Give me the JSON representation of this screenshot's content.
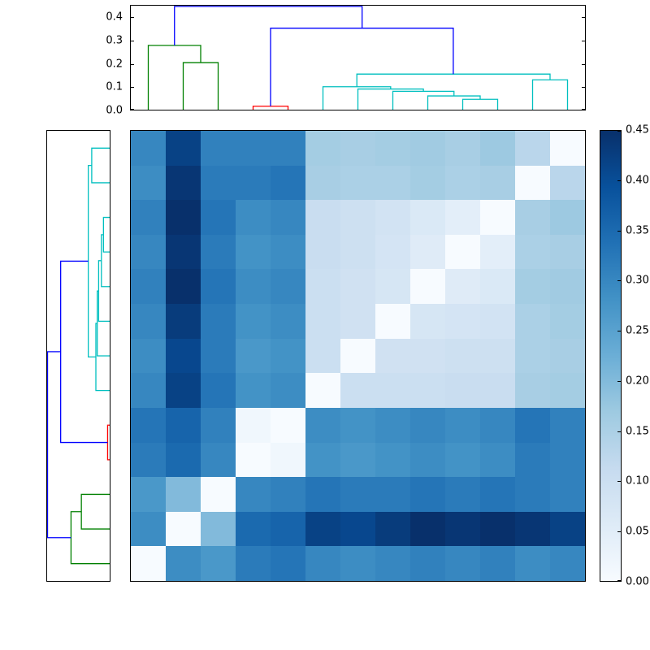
{
  "figure": {
    "background": "#ffffff",
    "description": "Clustered heatmap (distance matrix) with top and left dendrograms and a vertical colorbar"
  },
  "dendrogram_colors": {
    "blue": "#0000ff",
    "green": "#008000",
    "red": "#ff0000",
    "cyan": "#00bfbf"
  },
  "colormap": {
    "name": "Blues",
    "anchors": [
      [
        0.0,
        "#f7fbff"
      ],
      [
        0.125,
        "#deebf7"
      ],
      [
        0.25,
        "#c6dbef"
      ],
      [
        0.375,
        "#9ecae1"
      ],
      [
        0.5,
        "#6baed6"
      ],
      [
        0.625,
        "#4292c6"
      ],
      [
        0.75,
        "#2171b5"
      ],
      [
        0.875,
        "#08519c"
      ],
      [
        1.0,
        "#08306b"
      ]
    ]
  },
  "chart_data": {
    "type": "heatmap",
    "title": "",
    "n_rows": 13,
    "n_cols": 13,
    "vmin": 0.0,
    "vmax": 0.45,
    "grid": false,
    "matrix_rows_top_to_bottom": [
      [
        0.3,
        0.42,
        0.31,
        0.31,
        0.31,
        0.16,
        0.155,
        0.16,
        0.165,
        0.155,
        0.17,
        0.13,
        0.0
      ],
      [
        0.29,
        0.44,
        0.32,
        0.32,
        0.33,
        0.155,
        0.15,
        0.15,
        0.16,
        0.15,
        0.155,
        0.0,
        0.13
      ],
      [
        0.31,
        0.45,
        0.33,
        0.29,
        0.3,
        0.105,
        0.095,
        0.085,
        0.065,
        0.045,
        0.0,
        0.155,
        0.17
      ],
      [
        0.3,
        0.44,
        0.32,
        0.28,
        0.29,
        0.105,
        0.095,
        0.08,
        0.055,
        0.0,
        0.045,
        0.15,
        0.155
      ],
      [
        0.31,
        0.45,
        0.33,
        0.29,
        0.3,
        0.1,
        0.09,
        0.075,
        0.0,
        0.055,
        0.065,
        0.16,
        0.165
      ],
      [
        0.3,
        0.43,
        0.32,
        0.28,
        0.29,
        0.1,
        0.09,
        0.0,
        0.075,
        0.08,
        0.085,
        0.15,
        0.16
      ],
      [
        0.29,
        0.41,
        0.32,
        0.27,
        0.28,
        0.1,
        0.0,
        0.09,
        0.09,
        0.095,
        0.095,
        0.15,
        0.155
      ],
      [
        0.3,
        0.42,
        0.33,
        0.28,
        0.29,
        0.0,
        0.1,
        0.1,
        0.1,
        0.105,
        0.105,
        0.155,
        0.16
      ],
      [
        0.33,
        0.36,
        0.31,
        0.015,
        0.0,
        0.29,
        0.28,
        0.29,
        0.3,
        0.29,
        0.3,
        0.33,
        0.31
      ],
      [
        0.32,
        0.35,
        0.3,
        0.0,
        0.015,
        0.28,
        0.27,
        0.28,
        0.29,
        0.28,
        0.29,
        0.32,
        0.31
      ],
      [
        0.27,
        0.2,
        0.0,
        0.3,
        0.31,
        0.33,
        0.32,
        0.32,
        0.33,
        0.32,
        0.33,
        0.32,
        0.31
      ],
      [
        0.29,
        0.0,
        0.2,
        0.35,
        0.36,
        0.42,
        0.41,
        0.43,
        0.45,
        0.44,
        0.45,
        0.44,
        0.42
      ],
      [
        0.0,
        0.29,
        0.27,
        0.32,
        0.33,
        0.3,
        0.29,
        0.3,
        0.31,
        0.3,
        0.31,
        0.29,
        0.3
      ]
    ],
    "colorbar": {
      "tick_labels": [
        "0.00",
        "0.05",
        "0.10",
        "0.15",
        "0.20",
        "0.25",
        "0.30",
        "0.35",
        "0.40",
        "0.45"
      ],
      "tick_values": [
        0.0,
        0.05,
        0.1,
        0.15,
        0.2,
        0.25,
        0.3,
        0.35,
        0.4,
        0.45
      ]
    },
    "top_dendrogram": {
      "axis_tick_labels": [
        "0.0",
        "0.1",
        "0.2",
        "0.3",
        "0.4"
      ],
      "axis_tick_values": [
        0.0,
        0.1,
        0.2,
        0.3,
        0.4
      ],
      "axis_max": 0.453,
      "links": [
        {
          "color": "green",
          "points": [
            [
              2,
              0
            ],
            [
              2,
              0.205
            ],
            [
              3,
              0.205
            ],
            [
              3,
              0
            ]
          ]
        },
        {
          "color": "green",
          "points": [
            [
              1,
              0
            ],
            [
              1,
              0.28
            ],
            [
              2.5,
              0.28
            ],
            [
              2.5,
              0.205
            ]
          ]
        },
        {
          "color": "red",
          "points": [
            [
              4,
              0
            ],
            [
              4,
              0.015
            ],
            [
              5,
              0.015
            ],
            [
              5,
              0
            ]
          ]
        },
        {
          "color": "cyan",
          "points": [
            [
              10,
              0
            ],
            [
              10,
              0.045
            ],
            [
              11,
              0.045
            ],
            [
              11,
              0
            ]
          ]
        },
        {
          "color": "cyan",
          "points": [
            [
              9,
              0
            ],
            [
              9,
              0.06
            ],
            [
              10.5,
              0.06
            ],
            [
              10.5,
              0.045
            ]
          ]
        },
        {
          "color": "cyan",
          "points": [
            [
              8,
              0
            ],
            [
              8,
              0.08
            ],
            [
              9.75,
              0.08
            ],
            [
              9.75,
              0.06
            ]
          ]
        },
        {
          "color": "cyan",
          "points": [
            [
              7,
              0
            ],
            [
              7,
              0.09
            ],
            [
              8.875,
              0.09
            ],
            [
              8.875,
              0.08
            ]
          ]
        },
        {
          "color": "cyan",
          "points": [
            [
              6,
              0
            ],
            [
              6,
              0.1
            ],
            [
              7.9375,
              0.1
            ],
            [
              7.9375,
              0.09
            ]
          ]
        },
        {
          "color": "cyan",
          "points": [
            [
              12,
              0
            ],
            [
              12,
              0.13
            ],
            [
              13,
              0.13
            ],
            [
              13,
              0
            ]
          ]
        },
        {
          "color": "cyan",
          "points": [
            [
              6.97,
              0.1
            ],
            [
              6.97,
              0.155
            ],
            [
              12.5,
              0.155
            ],
            [
              12.5,
              0.13
            ]
          ]
        },
        {
          "color": "blue",
          "points": [
            [
              4.5,
              0.015
            ],
            [
              4.5,
              0.355
            ],
            [
              9.73,
              0.355
            ],
            [
              9.73,
              0.155
            ]
          ]
        },
        {
          "color": "blue",
          "points": [
            [
              1.75,
              0.28
            ],
            [
              1.75,
              0.45
            ],
            [
              7.12,
              0.45
            ],
            [
              7.12,
              0.355
            ]
          ]
        }
      ]
    },
    "left_dendrogram": {
      "axis_max": 0.453,
      "links": [
        {
          "color": "cyan",
          "points": [
            [
              0,
              3
            ],
            [
              0.045,
              3
            ],
            [
              0.045,
              4
            ],
            [
              0,
              4
            ]
          ]
        },
        {
          "color": "cyan",
          "points": [
            [
              0,
              5
            ],
            [
              0.06,
              5
            ],
            [
              0.06,
              3.5
            ],
            [
              0.045,
              3.5
            ]
          ]
        },
        {
          "color": "cyan",
          "points": [
            [
              0,
              6
            ],
            [
              0.08,
              6
            ],
            [
              0.08,
              4.25
            ],
            [
              0.06,
              4.25
            ]
          ]
        },
        {
          "color": "cyan",
          "points": [
            [
              0,
              7
            ],
            [
              0.09,
              7
            ],
            [
              0.09,
              5.125
            ],
            [
              0.08,
              5.125
            ]
          ]
        },
        {
          "color": "cyan",
          "points": [
            [
              0,
              8
            ],
            [
              0.1,
              8
            ],
            [
              0.1,
              6.0625
            ],
            [
              0.09,
              6.0625
            ]
          ]
        },
        {
          "color": "cyan",
          "points": [
            [
              0,
              1
            ],
            [
              0.13,
              1
            ],
            [
              0.13,
              2
            ],
            [
              0,
              2
            ]
          ]
        },
        {
          "color": "cyan",
          "points": [
            [
              0.13,
              1.5
            ],
            [
              0.155,
              1.5
            ],
            [
              0.155,
              7.03
            ],
            [
              0.1,
              7.03
            ]
          ]
        },
        {
          "color": "red",
          "points": [
            [
              0,
              9
            ],
            [
              0.015,
              9
            ],
            [
              0.015,
              10
            ],
            [
              0,
              10
            ]
          ]
        },
        {
          "color": "green",
          "points": [
            [
              0,
              11
            ],
            [
              0.205,
              11
            ],
            [
              0.205,
              12
            ],
            [
              0,
              12
            ]
          ]
        },
        {
          "color": "green",
          "points": [
            [
              0,
              13
            ],
            [
              0.28,
              13
            ],
            [
              0.28,
              11.5
            ],
            [
              0.205,
              11.5
            ]
          ]
        },
        {
          "color": "blue",
          "points": [
            [
              0.155,
              4.265
            ],
            [
              0.355,
              4.265
            ],
            [
              0.355,
              9.5
            ],
            [
              0.015,
              9.5
            ]
          ]
        },
        {
          "color": "blue",
          "points": [
            [
              0.355,
              6.88
            ],
            [
              0.45,
              6.88
            ],
            [
              0.45,
              12.25
            ],
            [
              0.28,
              12.25
            ]
          ]
        }
      ]
    }
  }
}
